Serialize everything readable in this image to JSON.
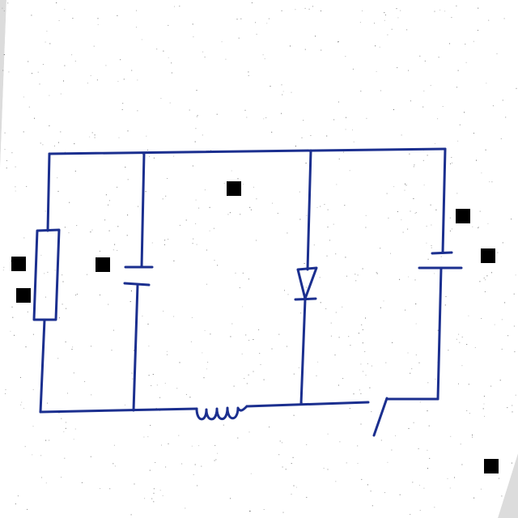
{
  "colors": {
    "paper": "#ffffff",
    "background_corner": "#dcdcdc",
    "wire": "#1b2f8f",
    "speckle": "#333333",
    "marker": "#000000"
  },
  "diagram": {
    "type": "circuit-schematic",
    "components": [
      {
        "kind": "resistor"
      },
      {
        "kind": "capacitor"
      },
      {
        "kind": "inductor"
      },
      {
        "kind": "diode"
      },
      {
        "kind": "battery"
      },
      {
        "kind": "switch",
        "state": "open"
      }
    ],
    "label_placeholders": 7
  }
}
